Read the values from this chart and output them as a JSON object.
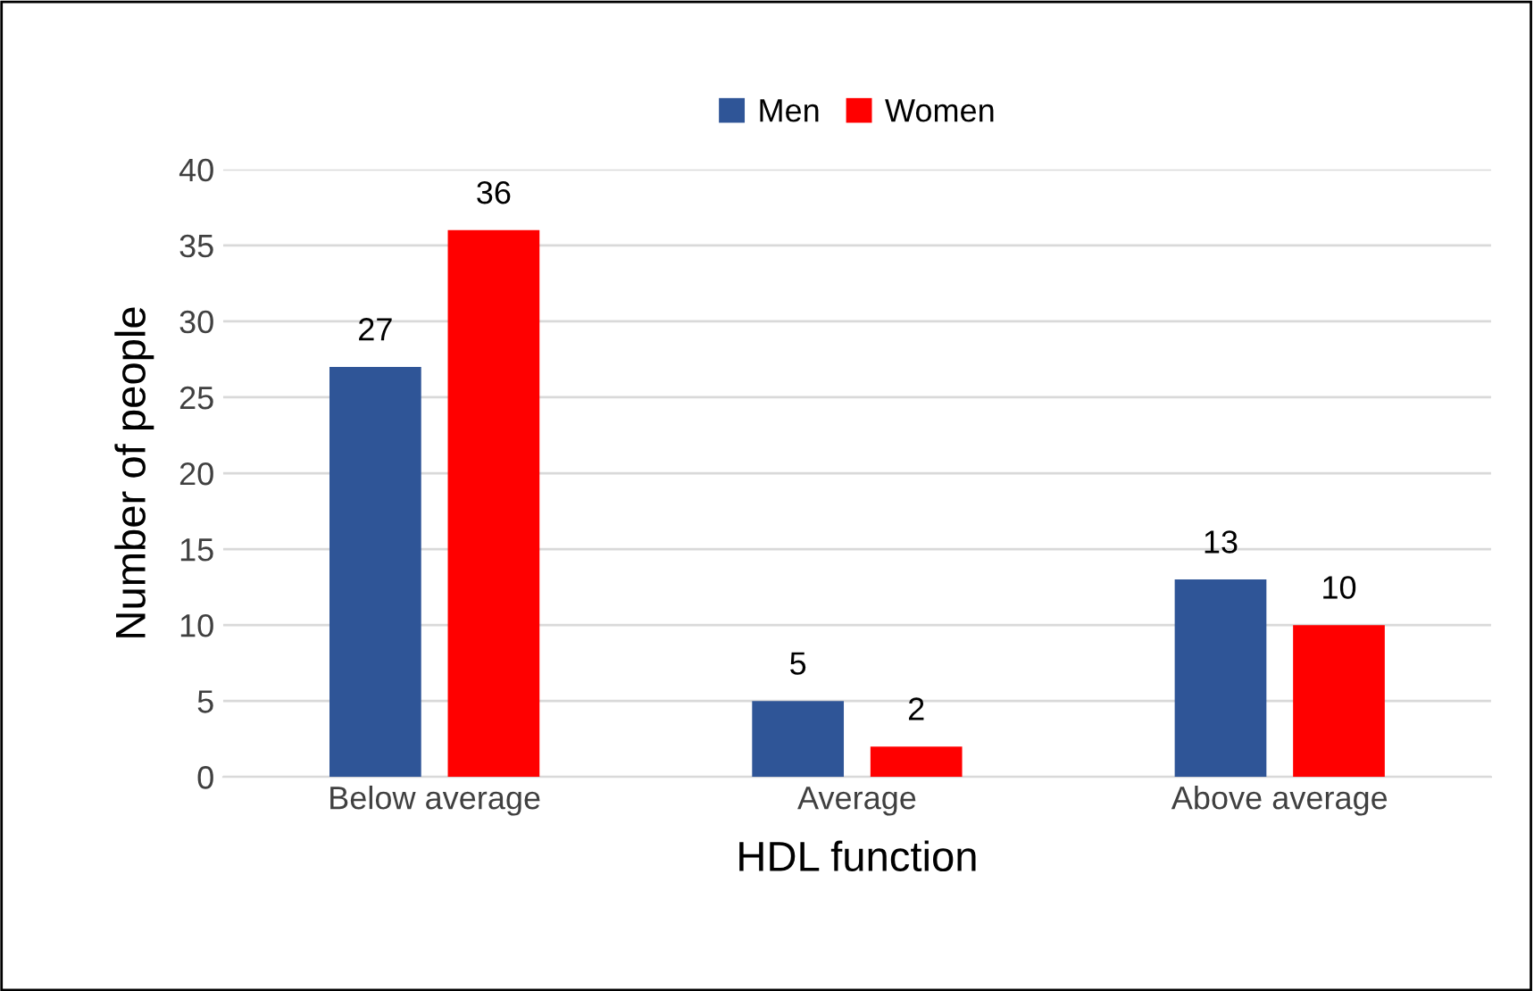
{
  "chart_data": {
    "type": "bar",
    "xlabel": "HDL function",
    "ylabel": "Number of people",
    "categories": [
      "Below average",
      "Average",
      "Above average"
    ],
    "series": [
      {
        "name": "Men",
        "color": "#2f5597",
        "values": [
          27,
          5,
          13
        ]
      },
      {
        "name": "Women",
        "color": "#ff0000",
        "values": [
          36,
          2,
          10
        ]
      }
    ],
    "ylim": [
      0,
      40
    ],
    "yticks": [
      0,
      5,
      10,
      15,
      20,
      25,
      30,
      35,
      40
    ],
    "grid": "y",
    "legend": "top",
    "data_labels": true
  }
}
